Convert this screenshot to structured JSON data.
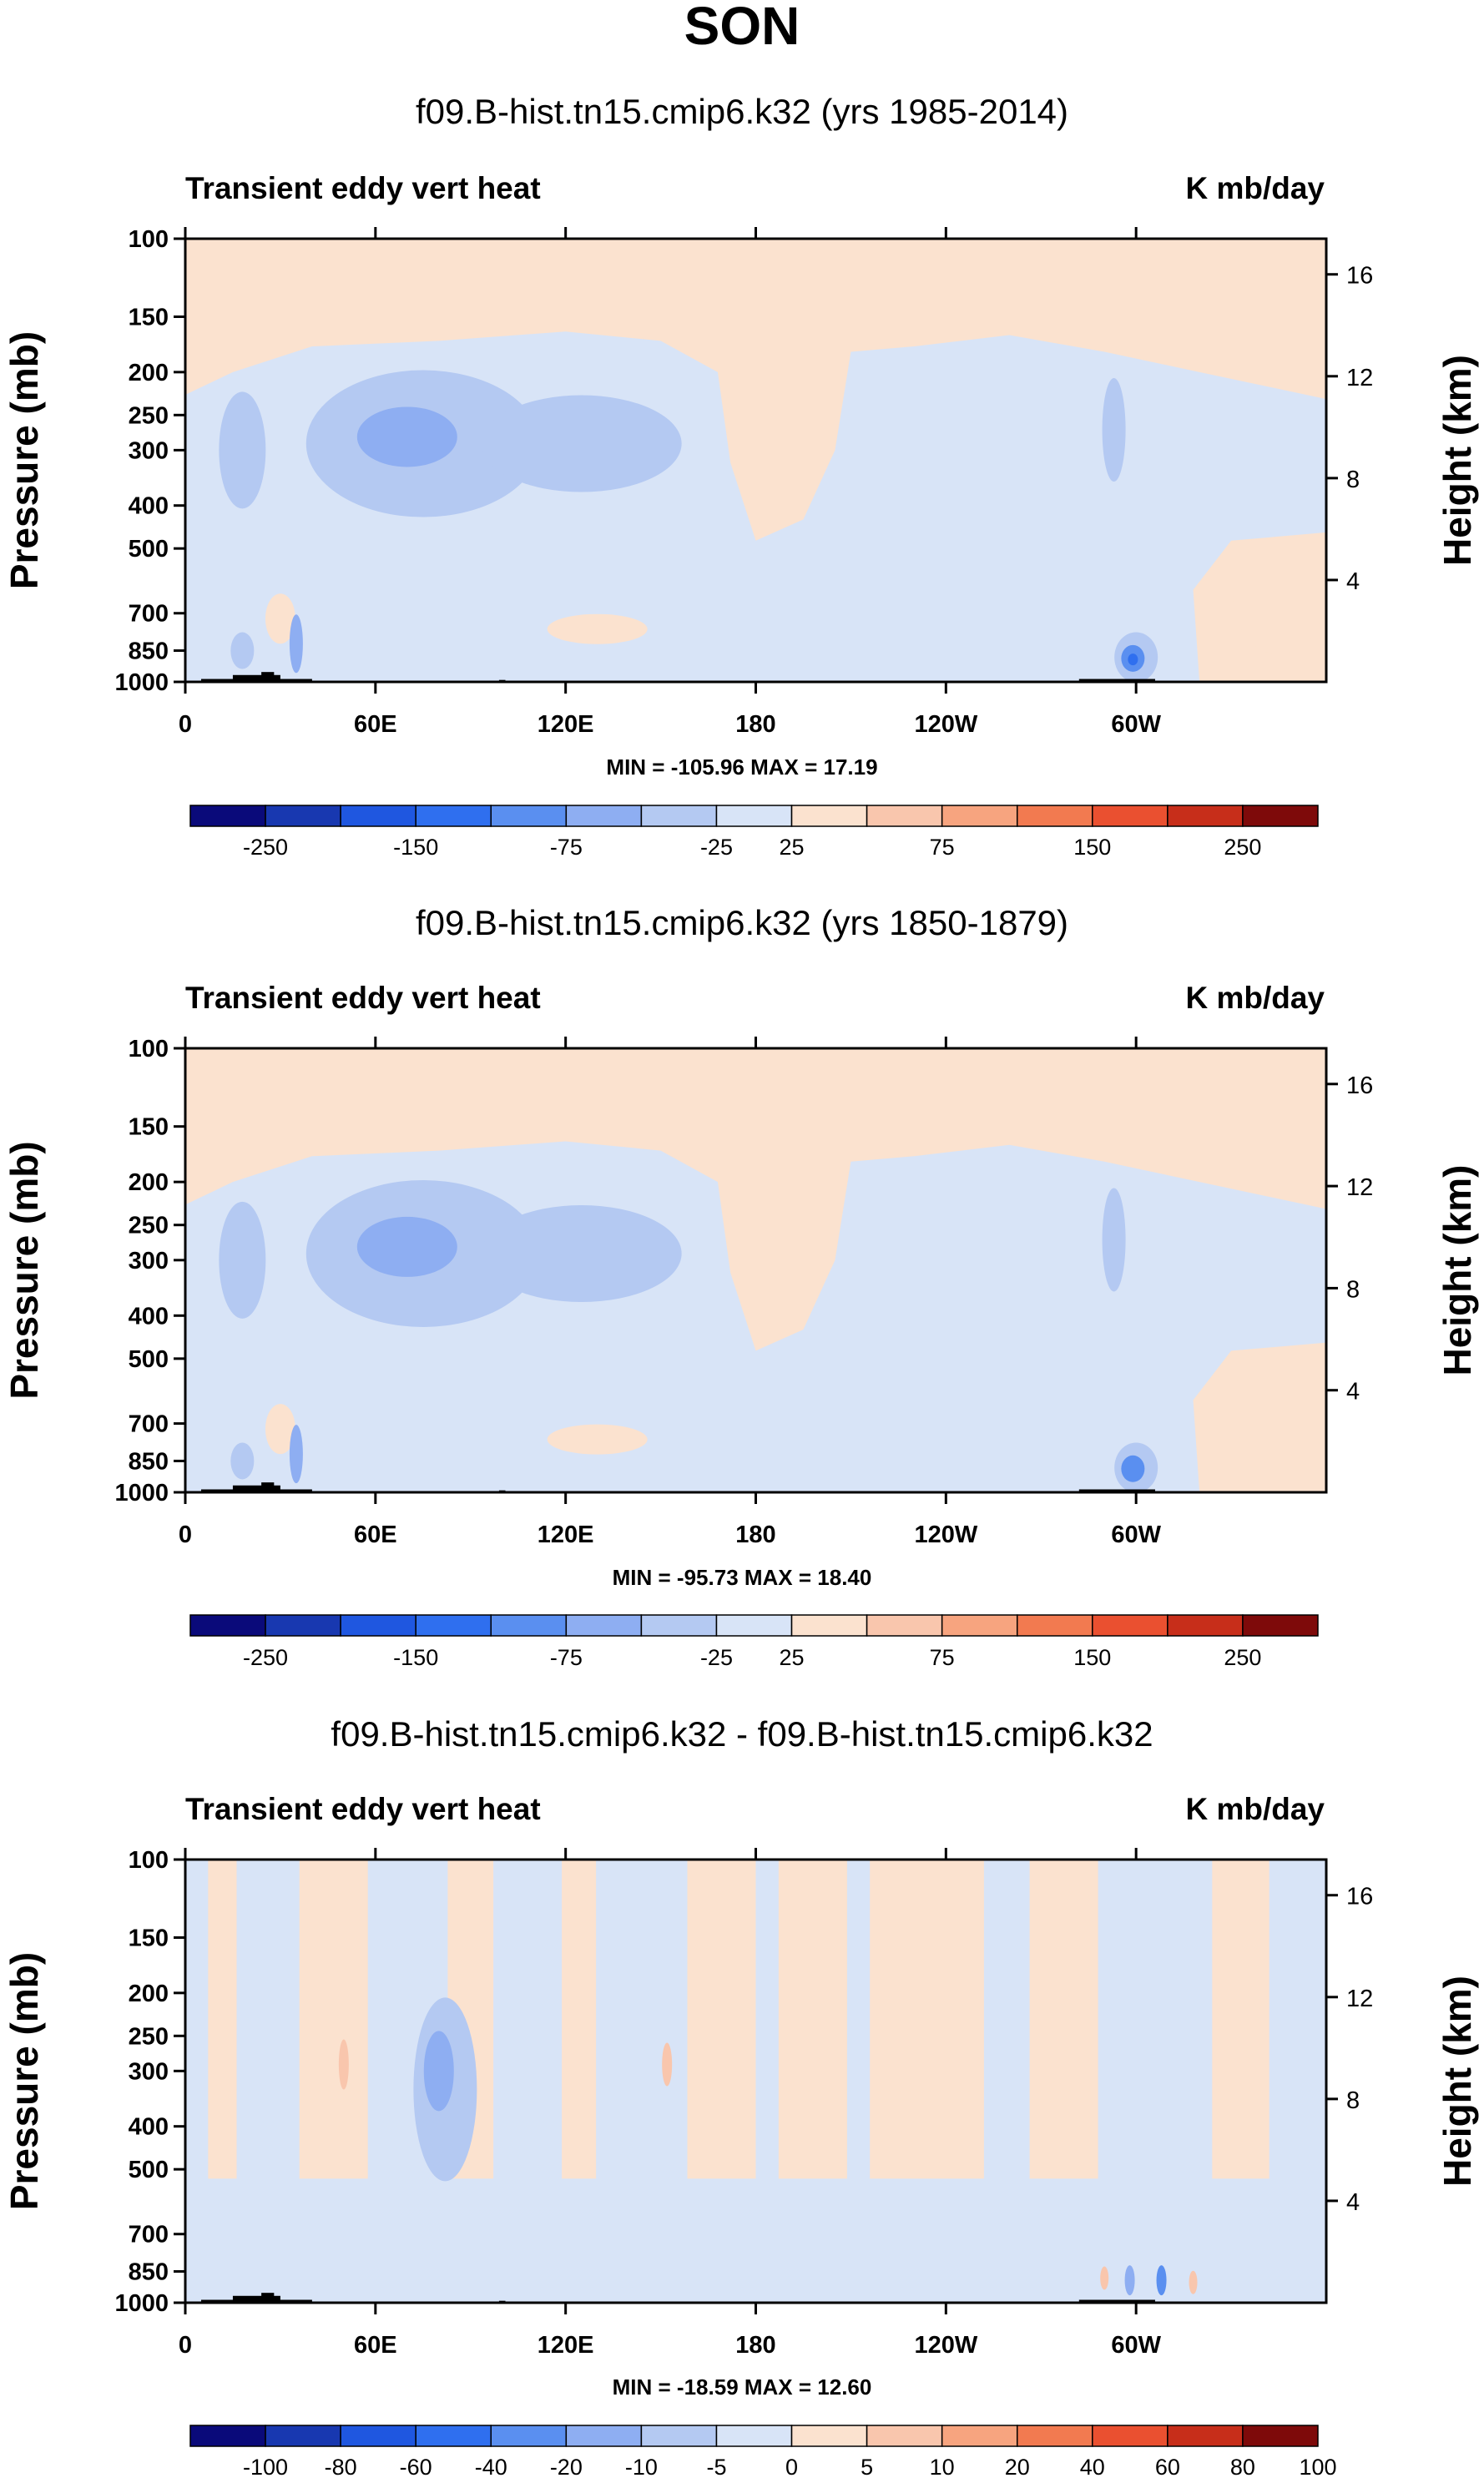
{
  "figure": {
    "title": "SON"
  },
  "colors": {
    "levels": [
      "#0a0a7a",
      "#1838b0",
      "#1f57e0",
      "#2f6fef",
      "#5a8ff0",
      "#8eaef2",
      "#b4c9f2",
      "#d8e4f7",
      "#fbe2cf",
      "#f9c6ad",
      "#f7a47f",
      "#f27a50",
      "#ea5030",
      "#c72e1a",
      "#7e0a0a"
    ],
    "land": "#000000"
  },
  "chart_data": [
    {
      "type": "heatmap",
      "name": "panel-1985-2014",
      "title": "f09.B-hist.tn15.cmip6.k32 (yrs 1985-2014)",
      "left_label": "Transient eddy vert heat",
      "right_label": "K mb/day",
      "ylabel": "Pressure (mb)",
      "ylabel_right": "Height (km)",
      "yticks": [
        "100",
        "150",
        "200",
        "250",
        "300",
        "400",
        "500",
        "700",
        "850",
        "1000"
      ],
      "yticks_right": [
        "16",
        "12",
        "8",
        "4"
      ],
      "xticks": [
        "0",
        "60E",
        "120E",
        "180",
        "120W",
        "60W"
      ],
      "min_max": "MIN = -105.96  MAX =  17.19",
      "colorbar_labels": [
        "-250",
        "-150",
        "-75",
        "-25",
        "25",
        "75",
        "150",
        "250"
      ],
      "features": [
        {
          "lon": 75,
          "p": 285,
          "level": 5,
          "desc": "core"
        },
        {
          "lon": 120,
          "p": 290,
          "level": 6,
          "desc": "jet"
        },
        {
          "lon": 300,
          "p": 880,
          "level": 3,
          "desc": "min center"
        }
      ]
    },
    {
      "type": "heatmap",
      "name": "panel-1850-1879",
      "title": "f09.B-hist.tn15.cmip6.k32 (yrs 1850-1879)",
      "left_label": "Transient eddy vert heat",
      "right_label": "K mb/day",
      "ylabel": "Pressure (mb)",
      "ylabel_right": "Height (km)",
      "yticks": [
        "100",
        "150",
        "200",
        "250",
        "300",
        "400",
        "500",
        "700",
        "850",
        "1000"
      ],
      "yticks_right": [
        "16",
        "12",
        "8",
        "4"
      ],
      "xticks": [
        "0",
        "60E",
        "120E",
        "180",
        "120W",
        "60W"
      ],
      "min_max": "MIN = -95.73  MAX =  18.40",
      "colorbar_labels": [
        "-250",
        "-150",
        "-75",
        "-25",
        "25",
        "75",
        "150",
        "250"
      ],
      "features": [
        {
          "lon": 75,
          "p": 280,
          "level": 5,
          "desc": "core"
        },
        {
          "lon": 300,
          "p": 880,
          "level": 4,
          "desc": "min center"
        }
      ]
    },
    {
      "type": "heatmap",
      "name": "panel-difference",
      "title": "f09.B-hist.tn15.cmip6.k32 - f09.B-hist.tn15.cmip6.k32",
      "left_label": "Transient eddy vert heat",
      "right_label": "K mb/day",
      "ylabel": "Pressure (mb)",
      "ylabel_right": "Height (km)",
      "yticks": [
        "100",
        "150",
        "200",
        "250",
        "300",
        "400",
        "500",
        "700",
        "850",
        "1000"
      ],
      "yticks_right": [
        "16",
        "12",
        "8",
        "4"
      ],
      "xticks": [
        "0",
        "60E",
        "120E",
        "180",
        "120W",
        "60W"
      ],
      "min_max": "MIN = -18.59  MAX =  12.60",
      "colorbar_labels": [
        "-100",
        "-80",
        "-60",
        "-40",
        "-20",
        "-10",
        "-5",
        "0",
        "5",
        "10",
        "20",
        "40",
        "60",
        "80",
        "100"
      ],
      "features": [
        {
          "lon": 80,
          "p": 300,
          "level": 5,
          "desc": "min"
        },
        {
          "lon": 300,
          "p": 900,
          "level": 4,
          "desc": "dipole"
        }
      ]
    }
  ]
}
